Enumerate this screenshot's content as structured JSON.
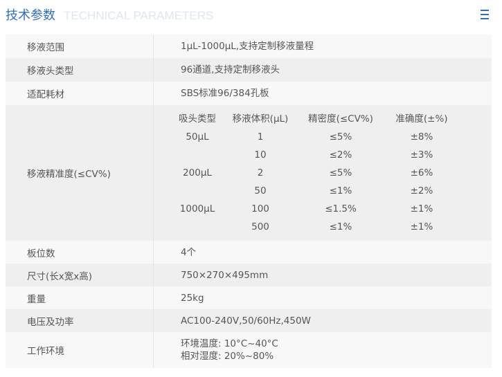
{
  "header": {
    "title": "技术参数",
    "subtitle": "TECHNICAL PARAMETERS",
    "menu_icon": "hamburger-icon"
  },
  "rows": [
    {
      "label": "移液范围",
      "value": "1μL-1000μL,支持定制移液量程"
    },
    {
      "label": "移液头类型",
      "value": "96通道,支持定制移液头"
    },
    {
      "label": "适配耗材",
      "value": "SBS标准96/384孔板"
    },
    {
      "label": "移液精准度(≤CV%)",
      "table": {
        "headers": [
          "吸头类型",
          "移液体积(μL)",
          "精密度(≤CV%)",
          "准确度(±%)"
        ],
        "rows": [
          [
            "50μL",
            "1",
            "≤5%",
            "±8%"
          ],
          [
            "",
            "10",
            "≤2%",
            "±3%"
          ],
          [
            "200μL",
            "2",
            "≤5%",
            "±6%"
          ],
          [
            "",
            "50",
            "≤1%",
            "±2%"
          ],
          [
            "1000μL",
            "100",
            "≤1.5%",
            "±1%"
          ],
          [
            "",
            "500",
            "≤1%",
            "±1%"
          ]
        ]
      }
    },
    {
      "label": "板位数",
      "value": "4个"
    },
    {
      "label": "尺寸(长x宽x高)",
      "value": "750×270×495mm"
    },
    {
      "label": "重量",
      "value": "25kg"
    },
    {
      "label": "电压及功率",
      "value": "AC100-240V,50/60Hz,450W"
    },
    {
      "label": "工作环境",
      "lines": [
        "环境温度: 10°C~40°C",
        "相对湿度: 20%~80%"
      ]
    }
  ]
}
